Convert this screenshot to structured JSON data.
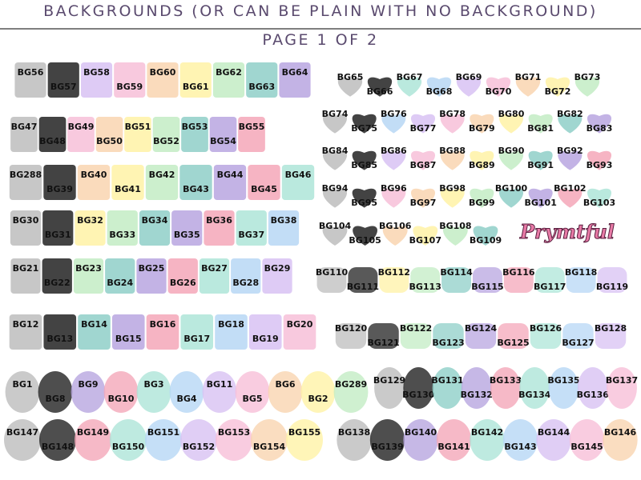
{
  "header": {
    "title": "BACKGROUNDS (OR CAN BE PLAIN WITH NO BACKGROUND)",
    "page": "PAGE 1 OF 2"
  },
  "groups": [
    {
      "items": [
        "BG56",
        "BG57",
        "BG58",
        "BG59",
        "BG60",
        "BG61",
        "BG62",
        "BG63",
        "BG64"
      ]
    },
    {
      "items": [
        "BG47",
        "BG48",
        "BG49",
        "BG50",
        "BG51",
        "BG52",
        "BG53",
        "BG54",
        "BG55"
      ]
    },
    {
      "items": [
        "BG288",
        "BG39",
        "BG40",
        "BG41",
        "BG42",
        "BG43",
        "BG44",
        "BG45",
        "BG46"
      ]
    },
    {
      "items": [
        "BG30",
        "BG31",
        "BG32",
        "BG33",
        "BG34",
        "BG35",
        "BG36",
        "BG37",
        "BG38"
      ]
    },
    {
      "items": [
        "BG21",
        "BG22",
        "BG23",
        "BG24",
        "BG25",
        "BG26",
        "BG27",
        "BG28",
        "BG29"
      ]
    },
    {
      "items": [
        "BG12",
        "BG13",
        "BG14",
        "BG15",
        "BG16",
        "BG17",
        "BG18",
        "BG19",
        "BG20"
      ]
    },
    {
      "items": [
        "BG1",
        "BG8",
        "BG9",
        "BG10",
        "BG3",
        "BG4",
        "BG11",
        "BG5",
        "BG6",
        "BG2",
        "BG289"
      ]
    },
    {
      "items": [
        "BG147",
        "BG148",
        "BG149",
        "BG150",
        "BG151",
        "BG152",
        "BG153",
        "BG154",
        "BG155"
      ]
    },
    {
      "items": [
        "BG65",
        "BG66",
        "BG67",
        "BG68",
        "BG69",
        "BG70",
        "BG71",
        "BG72",
        "BG73"
      ]
    },
    {
      "items": [
        "BG74",
        "BG75",
        "BG76",
        "BG77",
        "BG78",
        "BG79",
        "BG80",
        "BG81",
        "BG82",
        "BG83"
      ]
    },
    {
      "items": [
        "BG84",
        "BG85",
        "BG86",
        "BG87",
        "BG88",
        "BG89",
        "BG90",
        "BG91",
        "BG92",
        "BG93"
      ]
    },
    {
      "items": [
        "BG94",
        "BG95",
        "BG96",
        "BG97",
        "BG98",
        "BG99",
        "BG100",
        "BG101",
        "BG102",
        "BG103"
      ]
    },
    {
      "items": [
        "BG104",
        "BG105",
        "BG106",
        "BG107",
        "BG108",
        "BG109"
      ]
    },
    {
      "items": [
        "BG110",
        "BG111",
        "BG112",
        "BG113",
        "BG114",
        "BG115",
        "BG116",
        "BG117",
        "BG118",
        "BG119"
      ]
    },
    {
      "items": [
        "BG120",
        "BG121",
        "BG122",
        "BG123",
        "BG124",
        "BG125",
        "BG126",
        "BG127",
        "BG128"
      ]
    },
    {
      "items": [
        "BG129",
        "BG130",
        "BG131",
        "BG132",
        "BG133",
        "BG134",
        "BG135",
        "BG136",
        "BG137"
      ]
    },
    {
      "items": [
        "BG138",
        "BG139",
        "BG140",
        "BG141",
        "BG142",
        "BG143",
        "BG144",
        "BG145",
        "BG146"
      ]
    }
  ],
  "logo": "Prymtful"
}
